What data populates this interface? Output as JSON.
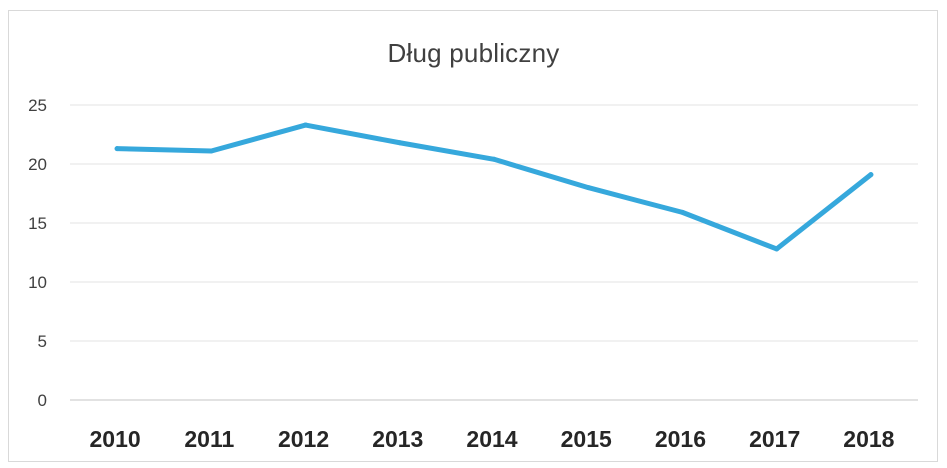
{
  "chart_data": {
    "type": "line",
    "title": "Dług publiczny",
    "categories": [
      "2010",
      "2011",
      "2012",
      "2013",
      "2014",
      "2015",
      "2016",
      "2017",
      "2018"
    ],
    "yticks": [
      "0",
      "5",
      "10",
      "15",
      "20",
      "25"
    ],
    "ylim": [
      0,
      25
    ],
    "series": [
      {
        "values": [
          21.3,
          21.1,
          23.3,
          21.8,
          20.4,
          18.0,
          15.9,
          12.8,
          19.1
        ],
        "color": "#36a8dc"
      }
    ],
    "grid": true,
    "legend": "none",
    "xlabel": "",
    "ylabel": ""
  }
}
